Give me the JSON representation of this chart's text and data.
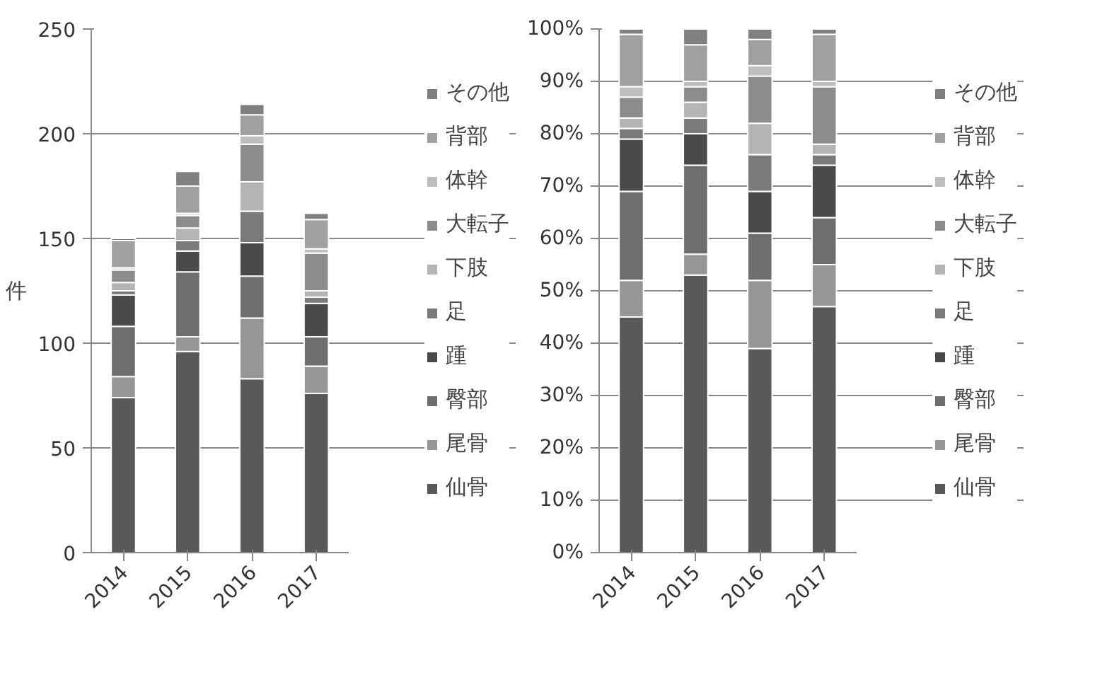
{
  "chart_data": [
    {
      "type": "bar",
      "stacked": true,
      "ylabel": "件",
      "categories": [
        "2014",
        "2015",
        "2016",
        "2017"
      ],
      "ylim": [
        0,
        250
      ],
      "yticks": [
        0,
        50,
        100,
        150,
        200,
        250
      ],
      "grid": "y",
      "legend": "right",
      "series": [
        {
          "name": "仙骨",
          "color": "#595959",
          "values": [
            74,
            96,
            83,
            76
          ]
        },
        {
          "name": "尾骨",
          "color": "#969696",
          "values": [
            10,
            7,
            29,
            13
          ]
        },
        {
          "name": "臀部",
          "color": "#6e6e6e",
          "values": [
            24,
            31,
            20,
            14
          ]
        },
        {
          "name": "踵",
          "color": "#4a4a4a",
          "values": [
            15,
            10,
            16,
            16
          ]
        },
        {
          "name": "足",
          "color": "#7a7a7a",
          "values": [
            2,
            5,
            15,
            3
          ]
        },
        {
          "name": "下肢",
          "color": "#b4b4b4",
          "values": [
            4,
            6,
            14,
            3
          ]
        },
        {
          "name": "大転子",
          "color": "#8c8c8c",
          "values": [
            6,
            6,
            18,
            18
          ]
        },
        {
          "name": "体幹",
          "color": "#bebebe",
          "values": [
            1,
            1,
            4,
            2
          ]
        },
        {
          "name": "背部",
          "color": "#a0a0a0",
          "values": [
            13,
            13,
            10,
            14
          ]
        },
        {
          "name": "その他",
          "color": "#808080",
          "values": [
            1,
            7,
            5,
            3
          ]
        }
      ]
    },
    {
      "type": "bar",
      "stacked": true,
      "categories": [
        "2014",
        "2015",
        "2016",
        "2017"
      ],
      "ylim": [
        0,
        100
      ],
      "yticks": [
        {
          "value": 0,
          "label": "0%"
        },
        {
          "value": 10,
          "label": "10%"
        },
        {
          "value": 20,
          "label": "20%"
        },
        {
          "value": 30,
          "label": "30%"
        },
        {
          "value": 40,
          "label": "40%"
        },
        {
          "value": 50,
          "label": "50%"
        },
        {
          "value": 60,
          "label": "60%"
        },
        {
          "value": 70,
          "label": "70%"
        },
        {
          "value": 80,
          "label": "80%"
        },
        {
          "value": 90,
          "label": "90%"
        },
        {
          "value": 100,
          "label": "100%"
        }
      ],
      "grid": "y",
      "legend": "right",
      "series": [
        {
          "name": "仙骨",
          "color": "#595959",
          "values": [
            45,
            53,
            39,
            47
          ]
        },
        {
          "name": "尾骨",
          "color": "#969696",
          "values": [
            7,
            4,
            13,
            8
          ]
        },
        {
          "name": "臀部",
          "color": "#6e6e6e",
          "values": [
            17,
            17,
            9,
            9
          ]
        },
        {
          "name": "踵",
          "color": "#4a4a4a",
          "values": [
            10,
            6,
            8,
            10
          ]
        },
        {
          "name": "足",
          "color": "#7a7a7a",
          "values": [
            2,
            3,
            7,
            2
          ]
        },
        {
          "name": "下肢",
          "color": "#b4b4b4",
          "values": [
            2,
            3,
            6,
            2
          ]
        },
        {
          "name": "大転子",
          "color": "#8c8c8c",
          "values": [
            4,
            3,
            9,
            11
          ]
        },
        {
          "name": "体幹",
          "color": "#bebebe",
          "values": [
            2,
            1,
            2,
            1
          ]
        },
        {
          "name": "背部",
          "color": "#a0a0a0",
          "values": [
            10,
            7,
            5,
            9
          ]
        },
        {
          "name": "その他",
          "color": "#808080",
          "values": [
            1,
            3,
            2,
            1
          ]
        }
      ]
    }
  ]
}
